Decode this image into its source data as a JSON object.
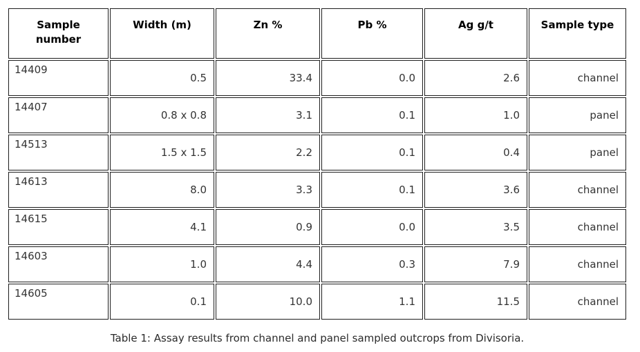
{
  "table": {
    "columns": [
      "Sample number",
      "Width (m)",
      "Zn %",
      "Pb %",
      "Ag g/t",
      "Sample type"
    ],
    "rows": [
      {
        "sample_number": "14409",
        "width_m": "0.5",
        "zn_pct": "33.4",
        "pb_pct": "0.0",
        "ag_gpt": "2.6",
        "sample_type": "channel"
      },
      {
        "sample_number": "14407",
        "width_m": "0.8 x 0.8",
        "zn_pct": "3.1",
        "pb_pct": "0.1",
        "ag_gpt": "1.0",
        "sample_type": "panel"
      },
      {
        "sample_number": "14513",
        "width_m": "1.5 x 1.5",
        "zn_pct": "2.2",
        "pb_pct": "0.1",
        "ag_gpt": "0.4",
        "sample_type": "panel"
      },
      {
        "sample_number": "14613",
        "width_m": "8.0",
        "zn_pct": "3.3",
        "pb_pct": "0.1",
        "ag_gpt": "3.6",
        "sample_type": "channel"
      },
      {
        "sample_number": "14615",
        "width_m": "4.1",
        "zn_pct": "0.9",
        "pb_pct": "0.0",
        "ag_gpt": "3.5",
        "sample_type": "channel"
      },
      {
        "sample_number": "14603",
        "width_m": "1.0",
        "zn_pct": "4.4",
        "pb_pct": "0.3",
        "ag_gpt": "7.9",
        "sample_type": "channel"
      },
      {
        "sample_number": "14605",
        "width_m": "0.1",
        "zn_pct": "10.0",
        "pb_pct": "1.1",
        "ag_gpt": "11.5",
        "sample_type": "channel"
      }
    ],
    "caption": "Table 1: Assay results from channel and panel sampled outcrops from Divisoria."
  },
  "colors": {
    "background": "#ffffff",
    "cell_border": "#1c1c1c",
    "header_text": "#000000",
    "cell_text": "#333333",
    "caption_text": "#2b2b2b"
  }
}
